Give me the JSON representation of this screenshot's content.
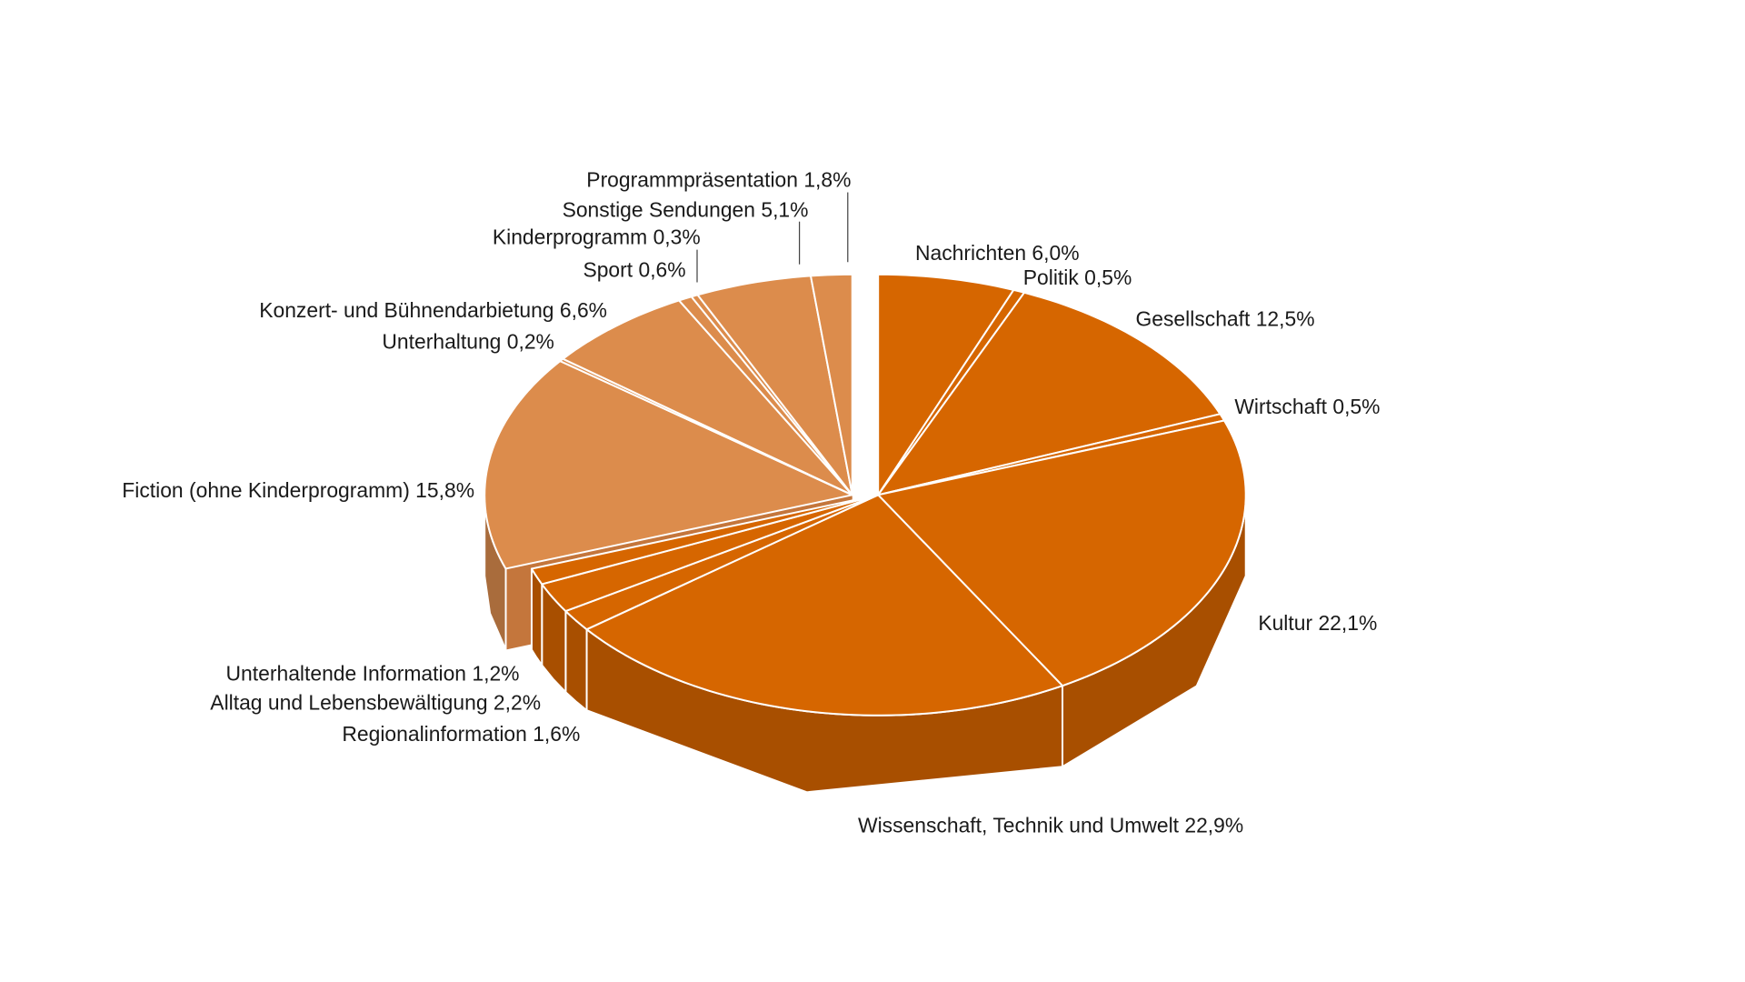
{
  "chart_data": {
    "type": "pie",
    "style": "3d-exploded-group",
    "start": "12 o'clock, clockwise",
    "colors": {
      "group_a_top": "#d66600",
      "group_a_side": "#a84f00",
      "group_b_top": "#dc8c4c",
      "group_b_side": "#a96c3c",
      "separator": "#ffffff",
      "text": "#1a1a1a"
    },
    "slices": [
      {
        "label": "Nachrichten 6,0%",
        "value": 6.0,
        "group": "a"
      },
      {
        "label": "Politik 0,5%",
        "value": 0.5,
        "group": "a"
      },
      {
        "label": "Gesellschaft 12,5%",
        "value": 12.5,
        "group": "a"
      },
      {
        "label": "Wirtschaft 0,5%",
        "value": 0.5,
        "group": "a"
      },
      {
        "label": "Kultur 22,1%",
        "value": 22.1,
        "group": "a"
      },
      {
        "label": "Wissenschaft, Technik und Umwelt 22,9%",
        "value": 22.9,
        "group": "a"
      },
      {
        "label": "Regionalinformation 1,6%",
        "value": 1.6,
        "group": "a"
      },
      {
        "label": "Alltag und Lebensbewältigung 2,2%",
        "value": 2.2,
        "group": "a"
      },
      {
        "label": "Unterhaltende Information 1,2%",
        "value": 1.2,
        "group": "a"
      },
      {
        "label": "Fiction (ohne Kinderprogramm) 15,8%",
        "value": 15.8,
        "group": "b"
      },
      {
        "label": "Unterhaltung 0,2%",
        "value": 0.2,
        "group": "b"
      },
      {
        "label": "Konzert- und Bühnendarbietung 6,6%",
        "value": 6.6,
        "group": "b"
      },
      {
        "label": "Sport 0,6%",
        "value": 0.6,
        "group": "b"
      },
      {
        "label": "Kinderprogramm 0,3%",
        "value": 0.3,
        "group": "b"
      },
      {
        "label": "Sonstige Sendungen 5,1%",
        "value": 5.1,
        "group": "b"
      },
      {
        "label": "Programmpräsentation 1,8%",
        "value": 1.8,
        "group": "b"
      }
    ]
  }
}
